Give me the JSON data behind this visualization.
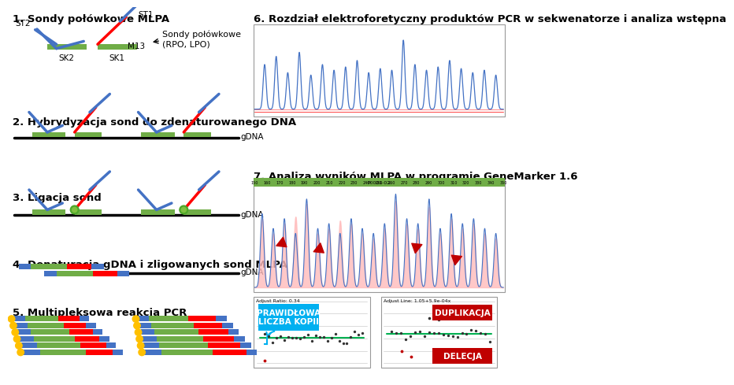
{
  "background": "#ffffff",
  "blue": "#4472C4",
  "blue2": "#5B9BD5",
  "green": "#70AD47",
  "red": "#FF0000",
  "darkred": "#C00000",
  "orange": "#FFC000",
  "black": "#000000",
  "pink": "#FFCCCC",
  "cyan": "#00B0F0",
  "gdna_green": "#6AAF3D",
  "label1": "1. Sondy połówkowe MLPA",
  "label2": "2. Hybrydyzacja sond do zdenaturowanego DNA",
  "label3": "3. Ligacja sond",
  "label4": "4. Denaturacja gDNA i zligowanych sond MLPA",
  "label5": "5. Multipleksowa reakcja PCR",
  "label6": "6. Rozdział elektroforetyczny produktów PCR w sekwenatorze i analiza wstępna",
  "label7": "7. Analiza wyników MLPA w programie GeneMarker 1.6",
  "label_ST2": "ST2",
  "label_SK2": "SK2",
  "label_SK1": "SK1",
  "label_M13": "M13",
  "label_ST1": "ST1",
  "label_sondy": "Sondy połówkowe\n(RPO, LPO)",
  "label_gDNA": "gDNA",
  "label_prawidlowa": "PRAWIDŁOWA\nLICZBA KOPII",
  "label_duplikacja": "DUPLIKACJA",
  "label_delecja": "DELECJA",
  "label_ratio": "Adjust Ratio: 0.34",
  "label_line": "Adjust Line: 1.05+5.9e-04x",
  "label_p0001": "P0001-02",
  "tick_labels": [
    "150",
    "160",
    "170",
    "180",
    "190",
    "200",
    "210",
    "220",
    "230",
    "240",
    "250",
    "260",
    "270",
    "280",
    "290",
    "300",
    "310",
    "320",
    "330",
    "340",
    "350"
  ]
}
